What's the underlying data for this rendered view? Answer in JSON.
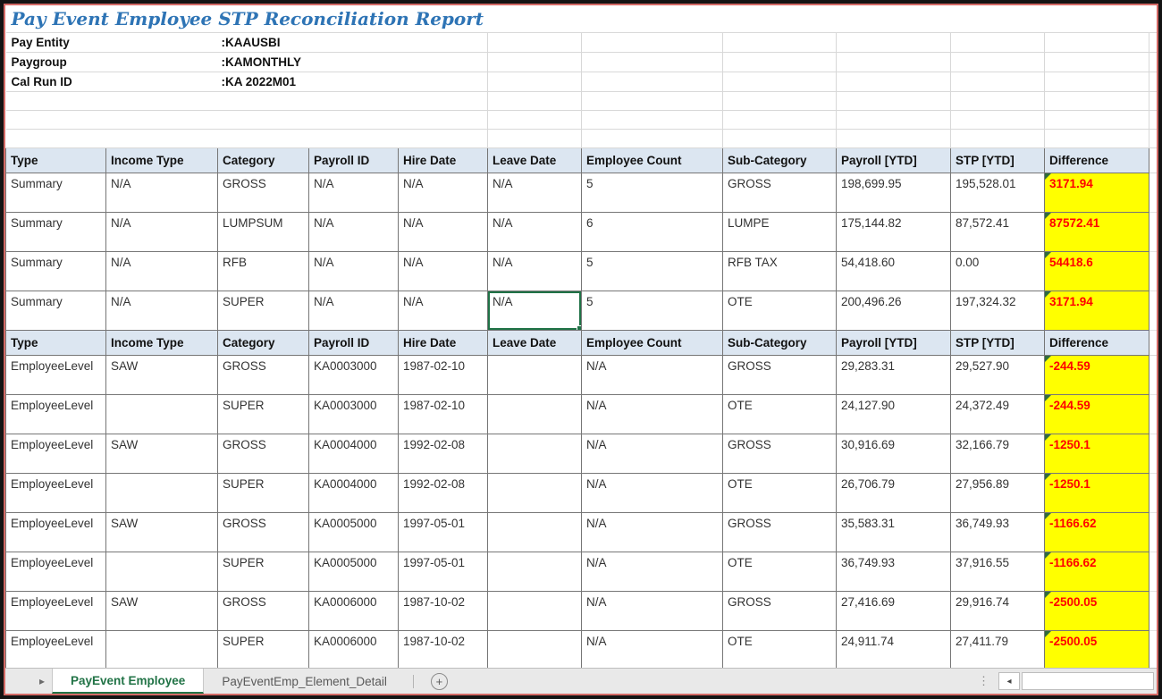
{
  "title": "Pay Event Employee STP Reconciliation Report",
  "info": {
    "fields": [
      {
        "label": "Pay Entity",
        "value": ":KAAUSBI"
      },
      {
        "label": "Paygroup",
        "value": ":KAMONTHLY"
      },
      {
        "label": "Cal Run ID",
        "value": ":KA 2022M01"
      }
    ]
  },
  "table": {
    "columns": [
      "Type",
      "Income Type",
      "Category",
      "Payroll ID",
      "Hire Date",
      "Leave Date",
      "Employee Count",
      "Sub-Category",
      "Payroll [YTD]",
      "STP [YTD]",
      "Difference"
    ],
    "summary_rows": [
      [
        "Summary",
        "N/A",
        "GROSS",
        "N/A",
        "N/A",
        "N/A",
        "5",
        "GROSS",
        "198,699.95",
        "195,528.01",
        "3171.94"
      ],
      [
        "Summary",
        "N/A",
        "LUMPSUM",
        "N/A",
        "N/A",
        "N/A",
        "6",
        "LUMPE",
        "175,144.82",
        "87,572.41",
        "87572.41"
      ],
      [
        "Summary",
        "N/A",
        "RFB",
        "N/A",
        "N/A",
        "N/A",
        "5",
        "RFB TAX",
        "54,418.60",
        "0.00",
        "54418.6"
      ],
      [
        "Summary",
        "N/A",
        "SUPER",
        "N/A",
        "N/A",
        "N/A",
        "5",
        "OTE",
        "200,496.26",
        "197,324.32",
        "3171.94"
      ]
    ],
    "employee_rows": [
      [
        "EmployeeLevel",
        "SAW",
        "GROSS",
        "KA0003000",
        "1987-02-10",
        "",
        "N/A",
        "GROSS",
        "29,283.31",
        "29,527.90",
        "-244.59"
      ],
      [
        "EmployeeLevel",
        "",
        "SUPER",
        "KA0003000",
        "1987-02-10",
        "",
        "N/A",
        "OTE",
        "24,127.90",
        "24,372.49",
        "-244.59"
      ],
      [
        "EmployeeLevel",
        "SAW",
        "GROSS",
        "KA0004000",
        "1992-02-08",
        "",
        "N/A",
        "GROSS",
        "30,916.69",
        "32,166.79",
        "-1250.1"
      ],
      [
        "EmployeeLevel",
        "",
        "SUPER",
        "KA0004000",
        "1992-02-08",
        "",
        "N/A",
        "OTE",
        "26,706.79",
        "27,956.89",
        "-1250.1"
      ],
      [
        "EmployeeLevel",
        "SAW",
        "GROSS",
        "KA0005000",
        "1997-05-01",
        "",
        "N/A",
        "GROSS",
        "35,583.31",
        "36,749.93",
        "-1166.62"
      ],
      [
        "EmployeeLevel",
        "",
        "SUPER",
        "KA0005000",
        "1997-05-01",
        "",
        "N/A",
        "OTE",
        "36,749.93",
        "37,916.55",
        "-1166.62"
      ],
      [
        "EmployeeLevel",
        "SAW",
        "GROSS",
        "KA0006000",
        "1987-10-02",
        "",
        "N/A",
        "GROSS",
        "27,416.69",
        "29,916.74",
        "-2500.05"
      ],
      [
        "EmployeeLevel",
        "",
        "SUPER",
        "KA0006000",
        "1987-10-02",
        "",
        "N/A",
        "OTE",
        "24,911.74",
        "27,411.79",
        "-2500.05"
      ]
    ],
    "selection": {
      "section": "summary",
      "row_index": 3,
      "col_index": 5
    }
  },
  "sheet_tabs": [
    {
      "label": "PayEvent Employee",
      "active": true
    },
    {
      "label": "PayEventEmp_Element_Detail",
      "active": false
    }
  ],
  "icons": {
    "nav_right": "▸",
    "add_sheet": "+",
    "drag_dots": "⋮",
    "scroll_left": "◂"
  },
  "colors": {
    "title_blue": "#2e74b5",
    "header_fill": "#dce6f1",
    "difference_fill": "#ffff00",
    "difference_text": "#ff0000",
    "active_tab_green": "#217346",
    "frame_red": "#d46a66",
    "error_triangle_green": "#2f6c3d"
  }
}
